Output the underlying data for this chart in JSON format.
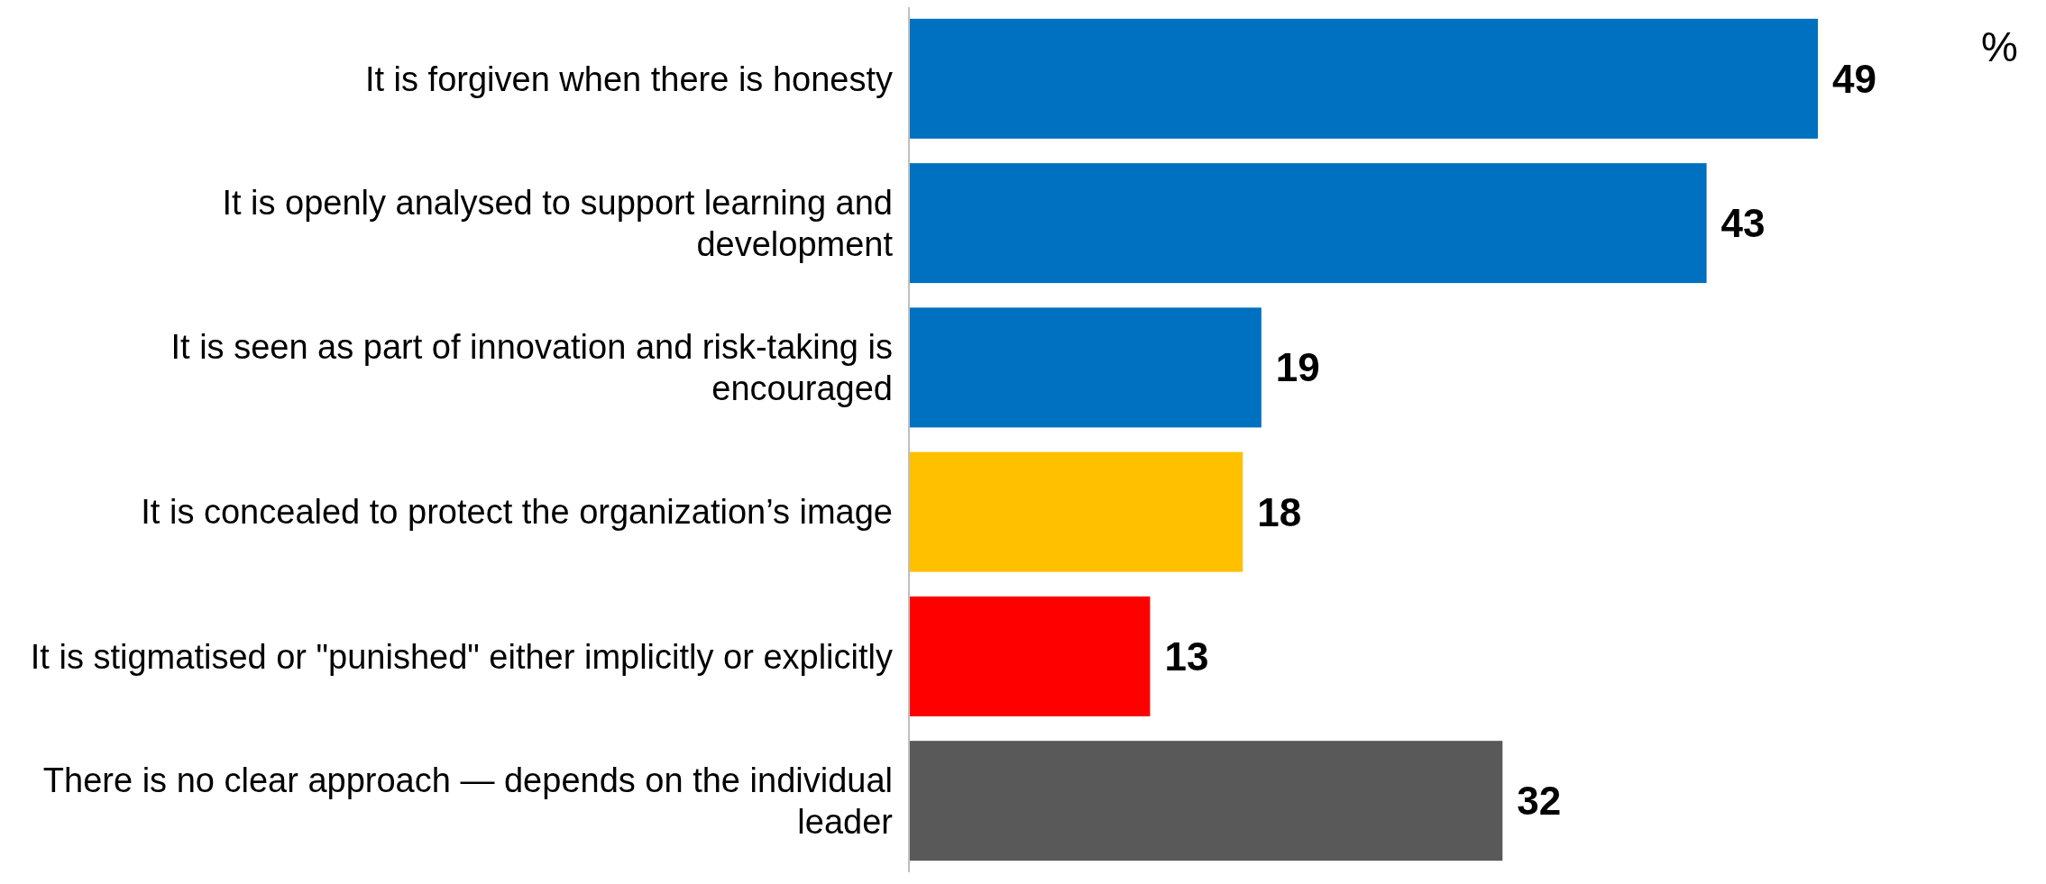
{
  "chart_data": {
    "type": "bar",
    "orientation": "horizontal",
    "categories": [
      "It is forgiven when there is honesty",
      "It is openly analysed to support learning and development",
      "It is seen as part of innovation and risk-taking is encouraged",
      "It is concealed to protect the organization’s image",
      "It is stigmatised or \"punished\" either implicitly or explicitly",
      "There is no clear approach — depends on the individual leader"
    ],
    "values": [
      49,
      43,
      19,
      18,
      13,
      32
    ],
    "colors": [
      "#0070c0",
      "#0070c0",
      "#0070c0",
      "#ffc000",
      "#ff0000",
      "#595959"
    ],
    "data_labels": true,
    "annotations": [
      "%"
    ]
  }
}
